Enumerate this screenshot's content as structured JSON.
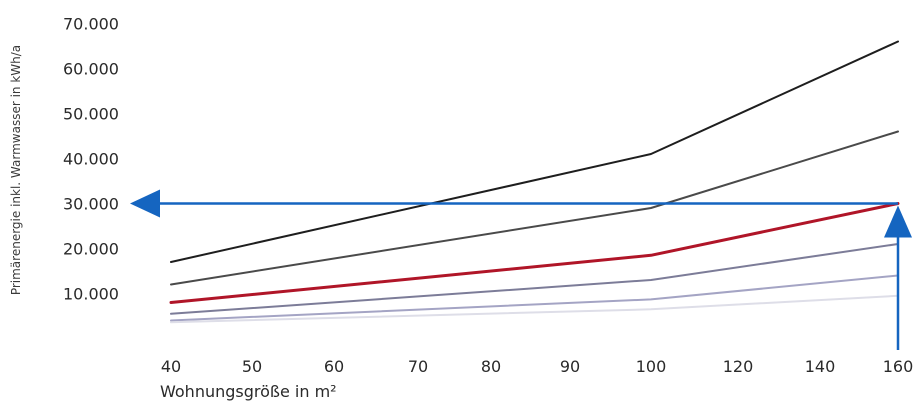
{
  "chart_data": {
    "type": "line",
    "ylabel": "Primärenergie inkl. Warmwasser in kWh/a",
    "xlabel": "Wohnungsgröße in m²",
    "x_ticks": [
      "40",
      "50",
      "60",
      "70",
      "80",
      "90",
      "100",
      "120",
      "140",
      "160"
    ],
    "x": [
      40,
      100,
      160
    ],
    "ylim": [
      0,
      70000
    ],
    "y_ticks": [
      "10.000",
      "20.000",
      "30.000",
      "40.000",
      "50.000",
      "60.000",
      "70.000"
    ],
    "y_tick_values": [
      10000,
      20000,
      30000,
      40000,
      50000,
      60000,
      70000
    ],
    "grid": false,
    "legend": "none",
    "series": [
      {
        "values": [
          17000,
          41000,
          66000
        ],
        "color": "#1e1e1e",
        "emphasis": false
      },
      {
        "values": [
          12000,
          29000,
          46000
        ],
        "color": "#4a4a4a",
        "emphasis": false
      },
      {
        "values": [
          8000,
          18500,
          30000
        ],
        "color": "#b01528",
        "emphasis": true
      },
      {
        "values": [
          5500,
          13000,
          21000
        ],
        "color": "#7c7c98",
        "emphasis": false
      },
      {
        "values": [
          4000,
          8700,
          14000
        ],
        "color": "#a4a4c4",
        "emphasis": false
      },
      {
        "values": [
          3600,
          6500,
          9500
        ],
        "color": "#dedee8",
        "emphasis": false
      }
    ],
    "annotations": {
      "color": "#1565c0",
      "reading_x": 160,
      "reading_y": 30000
    }
  }
}
